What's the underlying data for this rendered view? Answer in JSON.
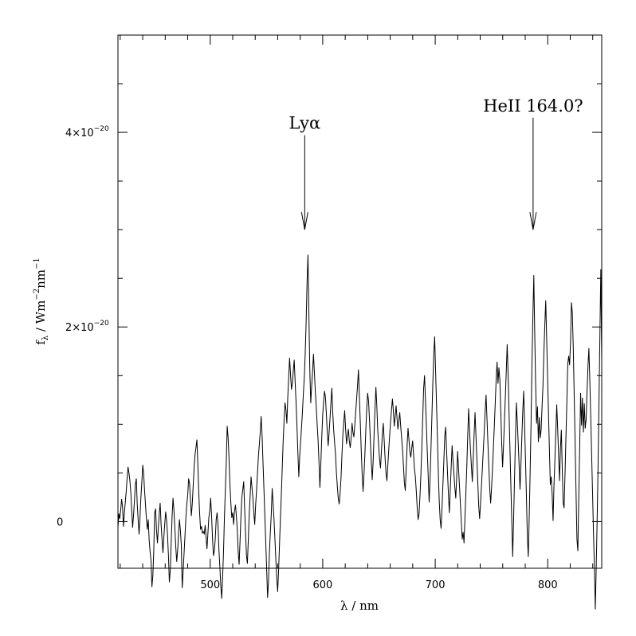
{
  "chart_data": {
    "type": "line",
    "title": "",
    "xlabel": "λ / nm",
    "ylabel": {
      "base": "f",
      "sub": "λ",
      "rest1": " / Wm",
      "sup1": "−2",
      "rest2": "nm",
      "sup2": "−1"
    },
    "xlim": [
      418,
      848
    ],
    "ylim": [
      -4.8e-21,
      5e-20
    ],
    "xticks": [
      {
        "value": 500,
        "label": "500"
      },
      {
        "value": 600,
        "label": "600"
      },
      {
        "value": 700,
        "label": "700"
      },
      {
        "value": 800,
        "label": "800"
      }
    ],
    "xminor_step": 20,
    "yticks": [
      {
        "value": 0,
        "mant": "0",
        "exp": ""
      },
      {
        "value": 2e-20,
        "mant": "2×10",
        "exp": "−20"
      },
      {
        "value": 4e-20,
        "mant": "4×10",
        "exp": "−20"
      }
    ],
    "yminor_step": 5e-21,
    "grid": false,
    "series": [
      {
        "x_start": 418,
        "x_end": 848,
        "y": [
          -0.6,
          0.8,
          0.3,
          1.2,
          2.3,
          1.5,
          -0.5,
          0.9,
          2.0,
          3.1,
          4.5,
          5.6,
          5.0,
          4.2,
          3.0,
          1.1,
          -0.6,
          0.7,
          2.2,
          3.8,
          4.4,
          1.8,
          0.2,
          -1.3,
          0.4,
          2.5,
          4.0,
          5.8,
          4.9,
          3.2,
          1.7,
          0.3,
          -0.8,
          0.2,
          -1.9,
          -3.1,
          -4.0,
          -6.7,
          -5.6,
          -3.0,
          0.9,
          1.3,
          -0.9,
          -2.2,
          -0.6,
          0.8,
          1.9,
          -0.3,
          -1.8,
          -3.2,
          -1.6,
          -0.2,
          1.0,
          0.1,
          -1.4,
          -3.5,
          -6.2,
          -5.0,
          -2.1,
          0.6,
          2.4,
          1.1,
          -0.7,
          -2.6,
          -4.1,
          -3.0,
          -1.2,
          0.2,
          -0.9,
          -2.4,
          -6.8,
          -5.1,
          -3.3,
          -1.5,
          0.4,
          1.8,
          2.7,
          4.4,
          3.9,
          2.2,
          0.6,
          1.9,
          3.8,
          5.6,
          6.9,
          7.6,
          8.4,
          5.9,
          3.1,
          0.8,
          -0.8,
          -0.5,
          -1.2,
          -1.0,
          -1.3,
          -0.4,
          -1.6,
          -2.8,
          -1.2,
          0.4,
          1.1,
          2.4,
          0.6,
          -1.7,
          -3.5,
          -3.0,
          -1.8,
          0.2,
          0.9,
          -0.4,
          -2.9,
          -4.6,
          -6.5,
          -7.9,
          -5.8,
          -3.1,
          0.5,
          3.2,
          6.1,
          9.8,
          8.6,
          6.5,
          3.8,
          1.9,
          0.4,
          0.9,
          -0.3,
          1.1,
          1.7,
          0.6,
          -0.9,
          -3.2,
          -4.4,
          -2.0,
          0.6,
          2.5,
          3.3,
          4.1,
          1.3,
          -1.2,
          -3.5,
          -4.3,
          -1.9,
          0.8,
          2.6,
          4.6,
          3.5,
          2.4,
          0.9,
          -0.3,
          1.7,
          3.2,
          5.0,
          6.7,
          7.9,
          9.2,
          10.8,
          8.9,
          6.1,
          3.4,
          0.6,
          -2.1,
          -4.9,
          -7.8,
          -6.1,
          -3.2,
          -1.1,
          0.7,
          3.4,
          1.9,
          0.2,
          -1.8,
          -3.9,
          -5.8,
          -7.2,
          -5.0,
          -2.3,
          0.4,
          2.8,
          5.6,
          8.3,
          10.5,
          12.2,
          11.5,
          10.1,
          12.8,
          14.9,
          16.8,
          15.1,
          13.6,
          14.2,
          15.5,
          16.6,
          14.4,
          12.3,
          9.8,
          7.1,
          4.6,
          6.8,
          8.2,
          9.7,
          11.3,
          13.2,
          14.8,
          17.3,
          20.5,
          24.6,
          27.4,
          21.3,
          15.6,
          12.2,
          13.9,
          15.4,
          17.2,
          15.3,
          13.4,
          11.8,
          10.0,
          8.4,
          6.1,
          3.5,
          5.9,
          8.6,
          10.9,
          12.3,
          13.4,
          12.8,
          11.1,
          9.3,
          7.8,
          9.1,
          10.6,
          12.2,
          13.7,
          11.2,
          9.4,
          8.1,
          6.9,
          5.0,
          3.6,
          2.4,
          1.8,
          2.9,
          4.5,
          6.8,
          8.9,
          10.2,
          11.4,
          9.5,
          8.0,
          8.8,
          9.5,
          8.3,
          7.6,
          8.5,
          10.1,
          9.2,
          8.7,
          9.9,
          11.3,
          12.6,
          14.0,
          15.6,
          12.8,
          10.2,
          7.4,
          4.9,
          3.1,
          4.8,
          6.9,
          9.4,
          11.6,
          13.2,
          12.4,
          10.5,
          8.2,
          6.1,
          4.3,
          6.2,
          8.9,
          11.6,
          13.8,
          11.9,
          9.4,
          7.8,
          6.4,
          5.5,
          7.2,
          8.9,
          10.1,
          8.4,
          6.5,
          5.0,
          4.2,
          5.8,
          7.4,
          8.9,
          10.3,
          11.5,
          12.6,
          11.4,
          9.8,
          10.8,
          11.9,
          10.6,
          9.5,
          10.4,
          11.2,
          9.8,
          8.6,
          7.4,
          5.8,
          4.0,
          3.2,
          5.5,
          7.8,
          9.6,
          8.4,
          7.2,
          6.6,
          7.5,
          8.3,
          6.9,
          5.4,
          4.6,
          3.1,
          1.4,
          0.2,
          0.8,
          2.6,
          4.8,
          7.5,
          10.6,
          13.7,
          15.0,
          12.4,
          9.8,
          7.1,
          4.6,
          2.0,
          4.4,
          7.5,
          10.8,
          14.2,
          17.1,
          19.0,
          15.6,
          12.2,
          8.7,
          5.0,
          2.1,
          0.2,
          -0.7,
          1.4,
          3.8,
          6.2,
          8.8,
          9.7,
          7.3,
          5.0,
          2.8,
          0.9,
          3.2,
          5.6,
          7.8,
          6.3,
          4.9,
          3.5,
          2.4,
          4.6,
          7.2,
          5.5,
          3.7,
          1.9,
          0.0,
          -1.8,
          -1.1,
          -2.2,
          0.4,
          2.9,
          5.6,
          8.7,
          11.6,
          9.5,
          7.4,
          5.8,
          4.1,
          6.5,
          9.0,
          11.2,
          8.8,
          6.4,
          4.0,
          1.6,
          0.3,
          1.9,
          3.7,
          5.5,
          7.4,
          9.2,
          11.4,
          13.0,
          10.6,
          8.1,
          5.7,
          3.4,
          1.9,
          3.5,
          5.4,
          7.6,
          9.8,
          12.2,
          14.6,
          16.4,
          14.2,
          15.8,
          14.6,
          11.5,
          8.2,
          5.6,
          7.8,
          10.2,
          12.8,
          15.4,
          18.2,
          15.2,
          11.4,
          7.6,
          3.8,
          0.1,
          -3.6,
          0.2,
          4.4,
          8.5,
          12.2,
          10.3,
          8.1,
          5.8,
          3.3,
          5.9,
          8.7,
          11.4,
          13.4,
          9.9,
          6.2,
          2.4,
          -1.6,
          -3.6,
          0.4,
          5.0,
          10.1,
          16.2,
          21.0,
          25.3,
          19.4,
          14.2,
          10.1,
          11.8,
          8.2,
          10.7,
          8.6,
          9.4,
          11.8,
          14.0,
          17.4,
          20.2,
          22.7,
          18.9,
          14.9,
          11.2,
          7.4,
          3.8,
          4.6,
          2.8,
          0.1,
          3.8,
          6.4,
          9.2,
          12.0,
          9.6,
          6.8,
          4.2,
          7.5,
          9.4,
          5.4,
          1.9,
          1.4,
          4.8,
          8.6,
          12.3,
          16.2,
          17.0,
          16.1,
          18.4,
          22.5,
          21.4,
          17.9,
          13.0,
          8.1,
          3.1,
          -1.8,
          -3.0,
          2.6,
          7.7,
          13.2,
          9.9,
          12.7,
          9.2,
          12.1,
          9.6,
          10.5,
          13.4,
          15.9,
          17.8,
          14.6,
          10.9,
          6.9,
          3.0,
          -1.1,
          -4.6,
          -9.0,
          -4.8,
          0.1,
          5.6,
          12.2,
          19.1,
          25.9,
          16.4
        ]
      }
    ],
    "y_unit": 1e-21,
    "annotations": [
      {
        "text": "Lyα",
        "x": 584,
        "arrow_from": 3.97e-20,
        "arrow_to": 3e-20
      },
      {
        "text": "HeII 164.0?",
        "x": 787,
        "arrow_from": 4.15e-20,
        "arrow_to": 3e-20
      }
    ]
  }
}
